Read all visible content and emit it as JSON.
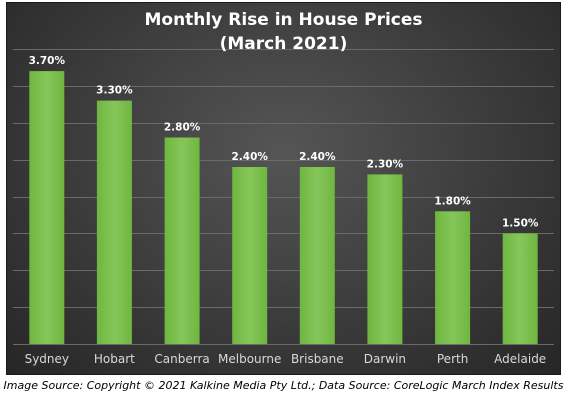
{
  "caption": "Image Source: Copyright © 2021 Kalkine Media Pty Ltd.; Data Source: CoreLogic March Index Results",
  "colors": {
    "bar": "#6fb640",
    "bar_light": "#86c65a",
    "gridline": "#6a6a6a",
    "label_text": "#ffffff",
    "tick_text": "#d9d9d9"
  },
  "chart_data": {
    "type": "bar",
    "title": [
      "Monthly Rise in House Prices",
      "(March 2021)"
    ],
    "categories": [
      "Sydney",
      "Hobart",
      "Canberra",
      "Melbourne",
      "Brisbane",
      "Darwin",
      "Perth",
      "Adelaide"
    ],
    "values": [
      3.7,
      3.3,
      2.8,
      2.4,
      2.4,
      2.3,
      1.8,
      1.5
    ],
    "data_labels": [
      "3.70%",
      "3.30%",
      "2.80%",
      "2.40%",
      "2.40%",
      "2.30%",
      "1.80%",
      "1.50%"
    ],
    "ylim": [
      0,
      4.0
    ],
    "grid": true,
    "legend": "none"
  }
}
